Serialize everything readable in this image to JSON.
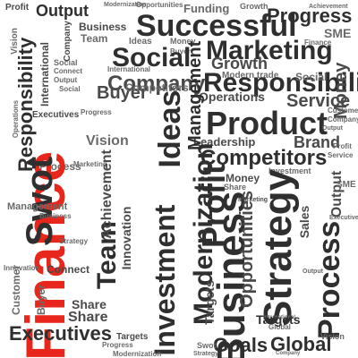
{
  "words": [
    "Finance",
    "Strategy",
    "Product",
    "Investment",
    "Business",
    "Profit",
    "Social",
    "Process",
    "Marketing",
    "Successful",
    "Output",
    "Responsibility",
    "Competitors",
    "Corporations",
    "Swot",
    "Team",
    "Modernization",
    "Innovation",
    "Opportunities",
    "Service",
    "Progress",
    "Executives",
    "Goals",
    "Global",
    "Ideas",
    "Company",
    "Buyer",
    "Money",
    "Management",
    "Achievement",
    "Growth",
    "Data",
    "Sales",
    "Network",
    "Vision",
    "Share",
    "Connect",
    "Funding",
    "Customer",
    "Brand",
    "Operations",
    "Leadership",
    "SME",
    "Targets",
    "International",
    "Modern trade"
  ],
  "accent_color": "#e8261b",
  "text_color": "#3a3a3a"
}
